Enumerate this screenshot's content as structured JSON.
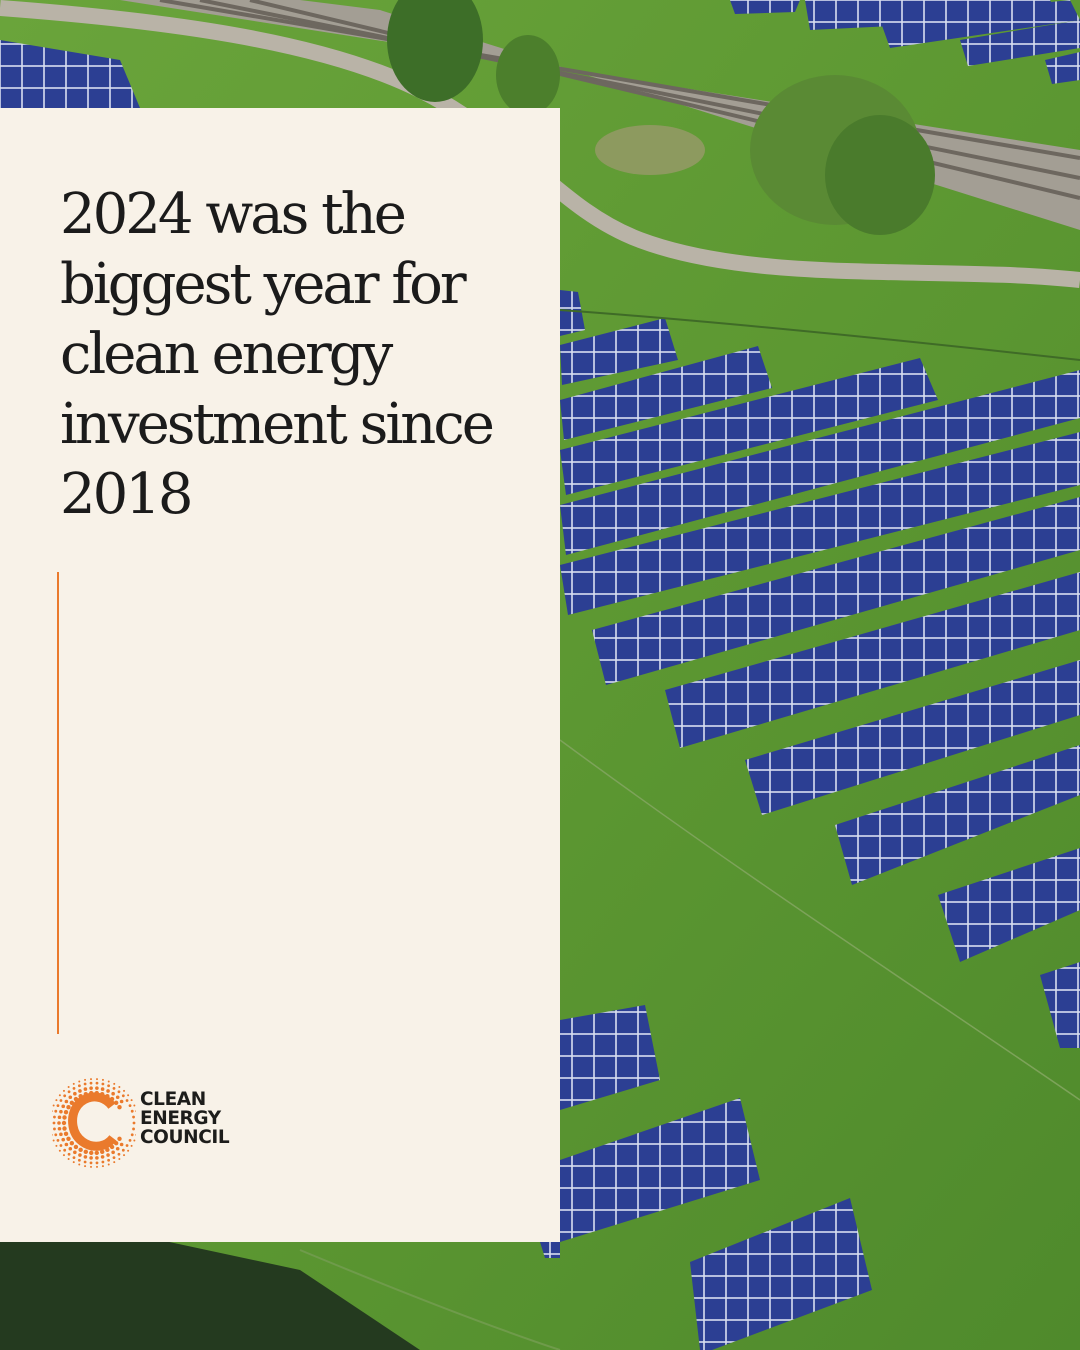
{
  "headline": "2024 was the biggest year for clean energy investment since 2018",
  "logo": {
    "line1": "CLEAN",
    "line2": "ENERGY",
    "line3": "COUNCIL"
  },
  "colors": {
    "card_background": "#f8f2e8",
    "accent_orange": "#ea7a2c",
    "text_dark": "#1b1b1b",
    "grass_green": "#5f9a35",
    "panel_blue": "#2b3f92"
  }
}
